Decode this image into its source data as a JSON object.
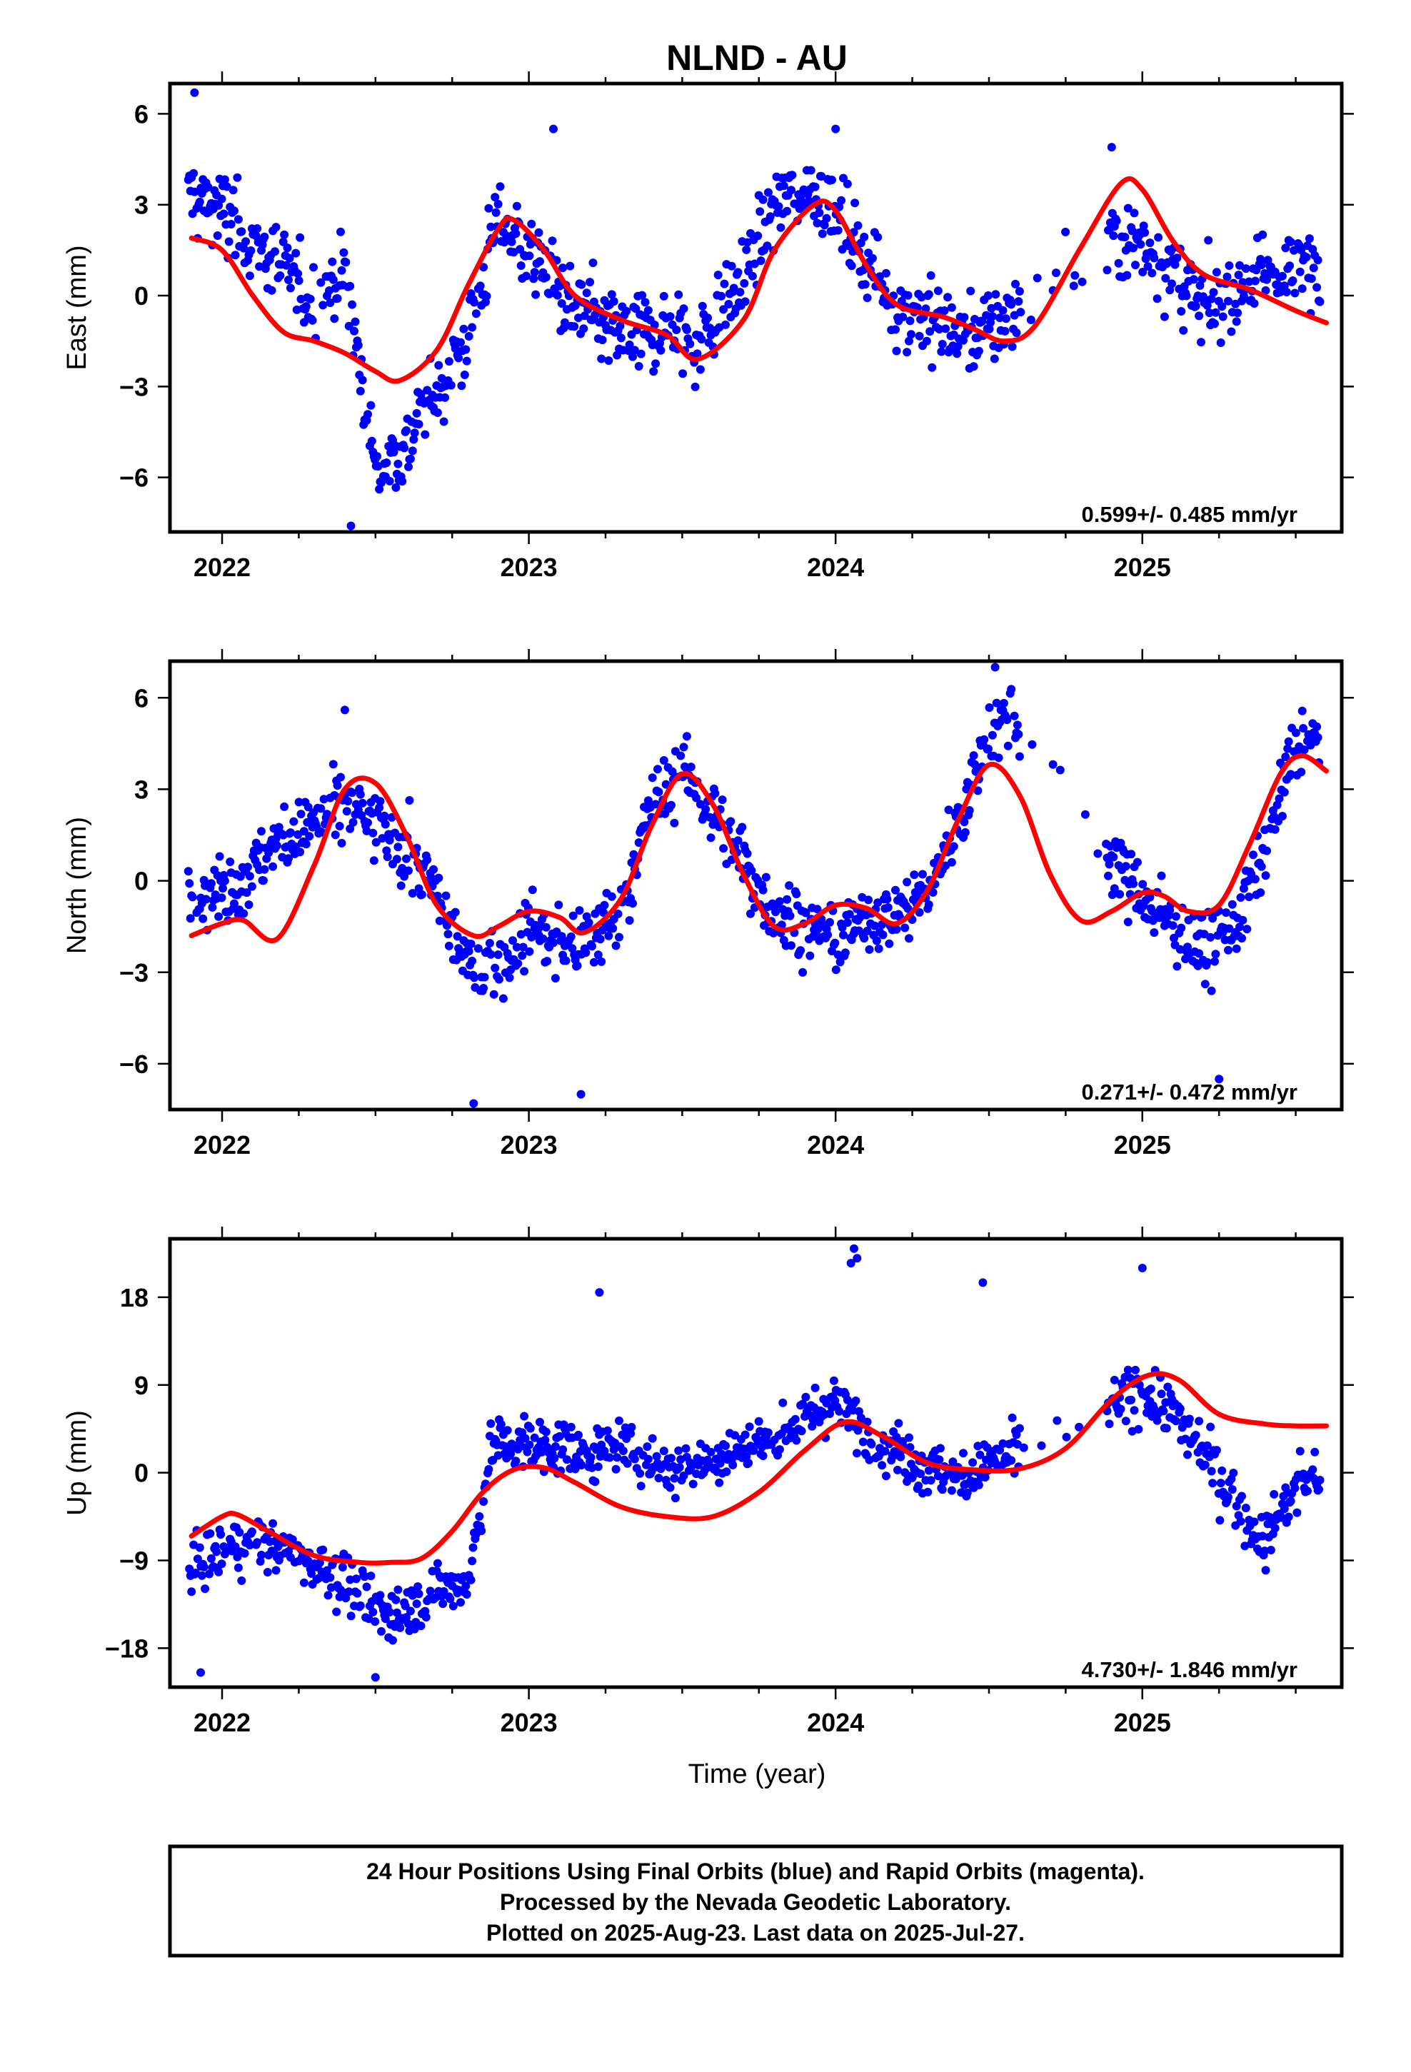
{
  "title": "NLND - AU",
  "xlabel": "Time (year)",
  "footer": {
    "line1": "24 Hour Positions Using Final Orbits (blue) and Rapid Orbits (magenta).",
    "line2": "Processed by the Nevada Geodetic Laboratory.",
    "line3": "Plotted on 2025-Aug-23. Last data on 2025-Jul-27."
  },
  "colors": {
    "points": "#0000ff",
    "fit": "#ff0000",
    "frame": "#000000",
    "background": "#ffffff"
  },
  "chart_data": [
    {
      "type": "scatter",
      "ylabel": "East (mm)",
      "rate_label": "0.599+/- 0.485 mm/yr",
      "xlim": [
        2021.83,
        2025.65
      ],
      "ylim": [
        -7.8,
        7.0
      ],
      "xticks": [
        2022,
        2023,
        2024,
        2025
      ],
      "yticks": [
        -6,
        -3,
        0,
        3,
        6
      ],
      "fit": {
        "x": [
          2021.9,
          2022.0,
          2022.1,
          2022.2,
          2022.3,
          2022.4,
          2022.5,
          2022.58,
          2022.7,
          2022.8,
          2022.9,
          2022.95,
          2023.05,
          2023.15,
          2023.3,
          2023.45,
          2023.55,
          2023.7,
          2023.8,
          2023.93,
          2024.0,
          2024.1,
          2024.2,
          2024.35,
          2024.45,
          2024.55,
          2024.65,
          2024.8,
          2024.93,
          2025.0,
          2025.1,
          2025.2,
          2025.35,
          2025.5,
          2025.6
        ],
        "y": [
          1.9,
          1.5,
          0.0,
          -1.2,
          -1.5,
          -1.9,
          -2.5,
          -2.8,
          -1.8,
          0.3,
          2.2,
          2.5,
          1.5,
          0.0,
          -0.8,
          -1.3,
          -2.1,
          -0.8,
          1.5,
          3.0,
          2.8,
          1.0,
          -0.3,
          -0.7,
          -1.1,
          -1.5,
          -1.0,
          1.6,
          3.7,
          3.5,
          1.8,
          0.7,
          0.2,
          -0.5,
          -0.9
        ]
      },
      "trend": [
        {
          "x": 2021.9,
          "y": 3.4
        },
        {
          "x": 2022.0,
          "y": 2.8
        },
        {
          "x": 2022.1,
          "y": 1.8
        },
        {
          "x": 2022.2,
          "y": 0.8
        },
        {
          "x": 2022.3,
          "y": -0.2
        },
        {
          "x": 2022.4,
          "y": 0.8
        },
        {
          "x": 2022.5,
          "y": -5.8
        },
        {
          "x": 2022.58,
          "y": -5.2
        },
        {
          "x": 2022.7,
          "y": -3.2
        },
        {
          "x": 2022.8,
          "y": -1.4
        },
        {
          "x": 2022.9,
          "y": 2.6
        },
        {
          "x": 2022.95,
          "y": 2.0
        },
        {
          "x": 2023.05,
          "y": 0.9
        },
        {
          "x": 2023.15,
          "y": -0.5
        },
        {
          "x": 2023.3,
          "y": -1.3
        },
        {
          "x": 2023.45,
          "y": -1.1
        },
        {
          "x": 2023.55,
          "y": -1.6
        },
        {
          "x": 2023.7,
          "y": 0.6
        },
        {
          "x": 2023.8,
          "y": 3.0
        },
        {
          "x": 2023.93,
          "y": 3.6
        },
        {
          "x": 2024.0,
          "y": 2.6
        },
        {
          "x": 2024.1,
          "y": 1.2
        },
        {
          "x": 2024.2,
          "y": -0.3
        },
        {
          "x": 2024.35,
          "y": -1.0
        },
        {
          "x": 2024.45,
          "y": -1.3
        },
        {
          "x": 2024.55,
          "y": -0.8
        },
        {
          "x": 2024.9,
          "y": 2.0
        },
        {
          "x": 2025.0,
          "y": 1.8
        },
        {
          "x": 2025.1,
          "y": 0.8
        },
        {
          "x": 2025.2,
          "y": -0.6
        },
        {
          "x": 2025.35,
          "y": 0.5
        },
        {
          "x": 2025.5,
          "y": 0.9
        },
        {
          "x": 2025.6,
          "y": 0.8
        }
      ],
      "scatter": 1.5,
      "gap": [
        2024.6,
        2024.88
      ],
      "outliers": [
        {
          "x": 2021.91,
          "y": 6.7
        },
        {
          "x": 2022.42,
          "y": -7.6
        },
        {
          "x": 2023.08,
          "y": 5.5
        },
        {
          "x": 2024.0,
          "y": 5.5
        },
        {
          "x": 2024.9,
          "y": 4.9
        }
      ]
    },
    {
      "type": "scatter",
      "ylabel": "North (mm)",
      "rate_label": "0.271+/- 0.472 mm/yr",
      "xlim": [
        2021.83,
        2025.65
      ],
      "ylim": [
        -7.5,
        7.2
      ],
      "xticks": [
        2022,
        2023,
        2024,
        2025
      ],
      "yticks": [
        -6,
        -3,
        0,
        3,
        6
      ],
      "fit": {
        "x": [
          2021.9,
          2022.0,
          2022.07,
          2022.18,
          2022.3,
          2022.4,
          2022.5,
          2022.6,
          2022.7,
          2022.82,
          2022.9,
          2023.0,
          2023.1,
          2023.18,
          2023.3,
          2023.4,
          2023.5,
          2023.6,
          2023.7,
          2023.8,
          2023.9,
          2024.0,
          2024.1,
          2024.2,
          2024.3,
          2024.4,
          2024.5,
          2024.6,
          2024.7,
          2024.8,
          2024.9,
          2025.0,
          2025.07,
          2025.15,
          2025.25,
          2025.35,
          2025.45,
          2025.52,
          2025.6
        ],
        "y": [
          -1.8,
          -1.4,
          -1.3,
          -1.9,
          0.5,
          3.0,
          3.2,
          1.5,
          -0.8,
          -1.8,
          -1.5,
          -1.0,
          -1.2,
          -1.7,
          -0.6,
          1.8,
          3.5,
          2.5,
          0.2,
          -1.5,
          -1.4,
          -0.8,
          -0.9,
          -1.4,
          -0.3,
          2.0,
          3.8,
          2.8,
          0.2,
          -1.3,
          -1.0,
          -0.4,
          -0.5,
          -1.0,
          -0.8,
          1.2,
          3.5,
          4.1,
          3.6
        ]
      },
      "trend": [
        {
          "x": 2021.9,
          "y": -0.2
        },
        {
          "x": 2022.0,
          "y": -0.3
        },
        {
          "x": 2022.1,
          "y": 0.3
        },
        {
          "x": 2022.2,
          "y": 1.5
        },
        {
          "x": 2022.3,
          "y": 1.8
        },
        {
          "x": 2022.4,
          "y": 2.5
        },
        {
          "x": 2022.5,
          "y": 1.8
        },
        {
          "x": 2022.6,
          "y": 1.0
        },
        {
          "x": 2022.7,
          "y": -0.5
        },
        {
          "x": 2022.8,
          "y": -2.8
        },
        {
          "x": 2022.9,
          "y": -2.8
        },
        {
          "x": 2023.0,
          "y": -1.5
        },
        {
          "x": 2023.1,
          "y": -2.2
        },
        {
          "x": 2023.2,
          "y": -2.0
        },
        {
          "x": 2023.3,
          "y": -1.0
        },
        {
          "x": 2023.4,
          "y": 2.5
        },
        {
          "x": 2023.5,
          "y": 3.6
        },
        {
          "x": 2023.6,
          "y": 2.2
        },
        {
          "x": 2023.7,
          "y": 0.5
        },
        {
          "x": 2023.8,
          "y": -1.0
        },
        {
          "x": 2023.9,
          "y": -1.5
        },
        {
          "x": 2024.0,
          "y": -2.0
        },
        {
          "x": 2024.1,
          "y": -1.2
        },
        {
          "x": 2024.2,
          "y": -1.0
        },
        {
          "x": 2024.3,
          "y": -0.4
        },
        {
          "x": 2024.4,
          "y": 2.0
        },
        {
          "x": 2024.5,
          "y": 4.8
        },
        {
          "x": 2024.56,
          "y": 5.5
        },
        {
          "x": 2024.9,
          "y": 0.8
        },
        {
          "x": 2025.0,
          "y": -0.5
        },
        {
          "x": 2025.1,
          "y": -1.5
        },
        {
          "x": 2025.2,
          "y": -2.3
        },
        {
          "x": 2025.3,
          "y": -1.5
        },
        {
          "x": 2025.4,
          "y": 1.0
        },
        {
          "x": 2025.5,
          "y": 4.5
        },
        {
          "x": 2025.6,
          "y": 4.5
        }
      ],
      "scatter": 1.3,
      "gap": [
        2024.6,
        2024.88
      ],
      "outliers": [
        {
          "x": 2022.82,
          "y": -7.3
        },
        {
          "x": 2023.17,
          "y": -7.0
        },
        {
          "x": 2025.25,
          "y": -6.5
        },
        {
          "x": 2024.52,
          "y": 7.0
        },
        {
          "x": 2022.4,
          "y": 5.6
        }
      ]
    },
    {
      "type": "scatter",
      "ylabel": "Up (mm)",
      "rate_label": "4.730+/- 1.846 mm/yr",
      "xlim": [
        2021.83,
        2025.65
      ],
      "ylim": [
        -22,
        24
      ],
      "xticks": [
        2022,
        2023,
        2024,
        2025
      ],
      "yticks": [
        -18,
        -9,
        0,
        9,
        18
      ],
      "fit": {
        "x": [
          2021.9,
          2022.0,
          2022.05,
          2022.15,
          2022.3,
          2022.45,
          2022.55,
          2022.65,
          2022.75,
          2022.85,
          2022.95,
          2023.05,
          2023.15,
          2023.3,
          2023.45,
          2023.6,
          2023.75,
          2023.9,
          2024.03,
          2024.15,
          2024.3,
          2024.45,
          2024.6,
          2024.75,
          2024.9,
          2025.02,
          2025.12,
          2025.25,
          2025.4,
          2025.5,
          2025.6
        ],
        "y": [
          -6.5,
          -4.5,
          -4.3,
          -6.0,
          -8.5,
          -9.2,
          -9.2,
          -8.8,
          -6.0,
          -2.0,
          0.3,
          0.5,
          -1.0,
          -3.5,
          -4.5,
          -4.5,
          -2.0,
          2.3,
          5.2,
          3.8,
          1.0,
          0.3,
          0.4,
          2.5,
          7.5,
          10.0,
          9.5,
          6.0,
          5.0,
          4.8,
          4.8
        ]
      },
      "trend": [
        {
          "x": 2021.9,
          "y": -10.0
        },
        {
          "x": 2022.0,
          "y": -8.0
        },
        {
          "x": 2022.1,
          "y": -7.0
        },
        {
          "x": 2022.2,
          "y": -8.0
        },
        {
          "x": 2022.3,
          "y": -9.5
        },
        {
          "x": 2022.4,
          "y": -11.0
        },
        {
          "x": 2022.5,
          "y": -14.5
        },
        {
          "x": 2022.6,
          "y": -14.0
        },
        {
          "x": 2022.7,
          "y": -12.0
        },
        {
          "x": 2022.8,
          "y": -11.5
        },
        {
          "x": 2022.88,
          "y": 3.0
        },
        {
          "x": 2023.0,
          "y": 3.0
        },
        {
          "x": 2023.1,
          "y": 2.5
        },
        {
          "x": 2023.2,
          "y": 2.0
        },
        {
          "x": 2023.3,
          "y": 3.0
        },
        {
          "x": 2023.4,
          "y": 1.0
        },
        {
          "x": 2023.5,
          "y": 0.5
        },
        {
          "x": 2023.6,
          "y": 1.5
        },
        {
          "x": 2023.7,
          "y": 2.5
        },
        {
          "x": 2023.8,
          "y": 3.5
        },
        {
          "x": 2023.9,
          "y": 5.5
        },
        {
          "x": 2024.0,
          "y": 7.5
        },
        {
          "x": 2024.1,
          "y": 4.0
        },
        {
          "x": 2024.2,
          "y": 2.5
        },
        {
          "x": 2024.3,
          "y": 0.5
        },
        {
          "x": 2024.4,
          "y": -0.5
        },
        {
          "x": 2024.5,
          "y": 1.0
        },
        {
          "x": 2024.56,
          "y": 1.5
        },
        {
          "x": 2024.92,
          "y": 7.0
        },
        {
          "x": 2025.0,
          "y": 8.5
        },
        {
          "x": 2025.1,
          "y": 6.0
        },
        {
          "x": 2025.2,
          "y": 2.0
        },
        {
          "x": 2025.3,
          "y": -3.0
        },
        {
          "x": 2025.4,
          "y": -7.0
        },
        {
          "x": 2025.5,
          "y": -1.5
        },
        {
          "x": 2025.6,
          "y": 0.5
        }
      ],
      "scatter": 3.2,
      "gap": [
        2024.6,
        2024.88
      ],
      "outliers": [
        {
          "x": 2024.06,
          "y": 23.0
        },
        {
          "x": 2024.07,
          "y": 22.0
        },
        {
          "x": 2024.05,
          "y": 21.5
        },
        {
          "x": 2023.23,
          "y": 18.5
        },
        {
          "x": 2024.48,
          "y": 19.5
        },
        {
          "x": 2021.93,
          "y": -20.5
        },
        {
          "x": 2022.5,
          "y": -21.0
        },
        {
          "x": 2025.0,
          "y": 21.0
        }
      ]
    }
  ]
}
